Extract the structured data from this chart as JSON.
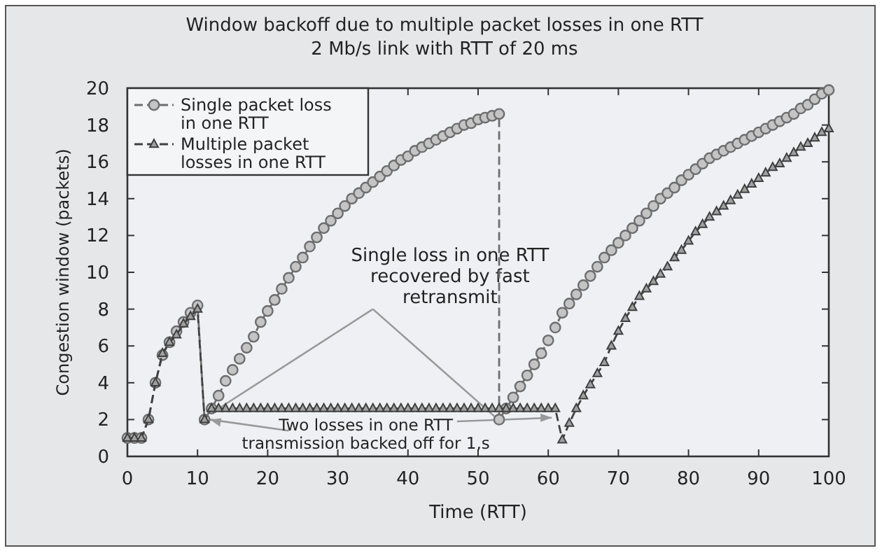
{
  "chart_data": {
    "type": "line",
    "title": "Window backoff due to multiple packet losses in one RTT",
    "subtitle": "2 Mb/s link with RTT of 20 ms",
    "xlabel": "Time (RTT)",
    "ylabel": "Congestion window (packets)",
    "xlim": [
      0,
      100
    ],
    "xticks": [
      0,
      10,
      20,
      30,
      40,
      50,
      60,
      70,
      80,
      90,
      100
    ],
    "ylim": [
      0,
      20
    ],
    "yticks": [
      0,
      2,
      4,
      6,
      8,
      10,
      12,
      14,
      16,
      18,
      20
    ],
    "grid": false,
    "legend": "top left",
    "line_style": "dashed",
    "annotations": [
      {
        "text": "Single loss in one RTT recovered by fast retransmit",
        "x": 53,
        "y": 2
      },
      {
        "text": "Two losses in one RTT transmission backed off for 1,s",
        "x": 11,
        "y": 2
      }
    ],
    "series": [
      {
        "name": "Single packet loss in one RTT",
        "color": "#6e6e6e",
        "marker": "circle",
        "x": [
          0,
          1,
          2,
          3,
          4,
          5,
          6,
          7,
          8,
          9,
          10,
          11,
          12,
          13,
          14,
          15,
          16,
          17,
          18,
          19,
          20,
          21,
          22,
          23,
          24,
          25,
          26,
          27,
          28,
          29,
          30,
          31,
          32,
          33,
          34,
          35,
          36,
          37,
          38,
          39,
          40,
          41,
          42,
          43,
          44,
          45,
          46,
          47,
          48,
          49,
          50,
          51,
          52,
          53,
          53,
          54,
          55,
          56,
          57,
          58,
          59,
          60,
          61,
          62,
          63,
          64,
          65,
          66,
          67,
          68,
          69,
          70,
          71,
          72,
          73,
          74,
          75,
          76,
          77,
          78,
          79,
          80,
          81,
          82,
          83,
          84,
          85,
          86,
          87,
          88,
          89,
          90,
          91,
          92,
          93,
          94,
          95,
          96,
          97,
          98,
          99,
          100
        ],
        "values": [
          1,
          1,
          1,
          2,
          4,
          5.5,
          6.2,
          6.8,
          7.3,
          7.8,
          8.2,
          2,
          2.6,
          3.3,
          4.1,
          4.7,
          5.3,
          5.9,
          6.5,
          7.3,
          7.9,
          8.5,
          9.1,
          9.7,
          10.3,
          10.8,
          11.4,
          11.9,
          12.4,
          12.8,
          13.2,
          13.6,
          14,
          14.3,
          14.6,
          14.9,
          15.2,
          15.5,
          15.8,
          16.1,
          16.3,
          16.6,
          16.8,
          17,
          17.2,
          17.4,
          17.6,
          17.8,
          18,
          18.1,
          18.3,
          18.4,
          18.5,
          18.6,
          2,
          2.6,
          3.2,
          3.8,
          4.4,
          5,
          5.6,
          6.3,
          7,
          7.8,
          8.3,
          8.8,
          9.3,
          9.8,
          10.3,
          10.8,
          11.2,
          11.6,
          12,
          12.4,
          12.8,
          13.2,
          13.6,
          14,
          14.3,
          14.6,
          15,
          15.3,
          15.6,
          15.9,
          16.2,
          16.4,
          16.6,
          16.8,
          17,
          17.2,
          17.4,
          17.6,
          17.8,
          18,
          18.2,
          18.4,
          18.6,
          18.9,
          19.1,
          19.4,
          19.7,
          19.9
        ]
      },
      {
        "name": "Multiple packet losses in one RTT",
        "color": "#404040",
        "marker": "triangle",
        "x": [
          0,
          1,
          2,
          3,
          4,
          5,
          6,
          7,
          8,
          9,
          10,
          11,
          12,
          13,
          14,
          15,
          16,
          17,
          18,
          19,
          20,
          21,
          22,
          23,
          24,
          25,
          26,
          27,
          28,
          29,
          30,
          31,
          32,
          33,
          34,
          35,
          36,
          37,
          38,
          39,
          40,
          41,
          42,
          43,
          44,
          45,
          46,
          47,
          48,
          49,
          50,
          51,
          52,
          53,
          54,
          55,
          56,
          57,
          58,
          59,
          60,
          61,
          62,
          63,
          64,
          65,
          66,
          67,
          68,
          69,
          70,
          71,
          72,
          73,
          74,
          75,
          76,
          77,
          78,
          79,
          80,
          81,
          82,
          83,
          84,
          85,
          86,
          87,
          88,
          89,
          90,
          91,
          92,
          93,
          94,
          95,
          96,
          97,
          98,
          99,
          100
        ],
        "values": [
          1,
          1,
          1,
          2,
          4,
          5.6,
          6.2,
          6.6,
          7.2,
          7.6,
          8,
          2,
          2.6,
          2.6,
          2.6,
          2.6,
          2.6,
          2.6,
          2.6,
          2.6,
          2.6,
          2.6,
          2.6,
          2.6,
          2.6,
          2.6,
          2.6,
          2.6,
          2.6,
          2.6,
          2.6,
          2.6,
          2.6,
          2.6,
          2.6,
          2.6,
          2.6,
          2.6,
          2.6,
          2.6,
          2.6,
          2.6,
          2.6,
          2.6,
          2.6,
          2.6,
          2.6,
          2.6,
          2.6,
          2.6,
          2.6,
          2.6,
          2.6,
          2.6,
          2.6,
          2.6,
          2.6,
          2.6,
          2.6,
          2.6,
          2.6,
          2.6,
          0.9,
          1.8,
          2.6,
          3.3,
          3.9,
          4.5,
          5.1,
          6,
          6.8,
          7.5,
          8.1,
          8.7,
          9.1,
          9.5,
          9.9,
          10.3,
          10.8,
          11.2,
          11.7,
          12.2,
          12.6,
          13,
          13.3,
          13.6,
          13.9,
          14.2,
          14.5,
          14.8,
          15.1,
          15.4,
          15.7,
          15.9,
          16.2,
          16.5,
          16.8,
          17,
          17.3,
          17.6,
          17.8
        ]
      }
    ]
  }
}
